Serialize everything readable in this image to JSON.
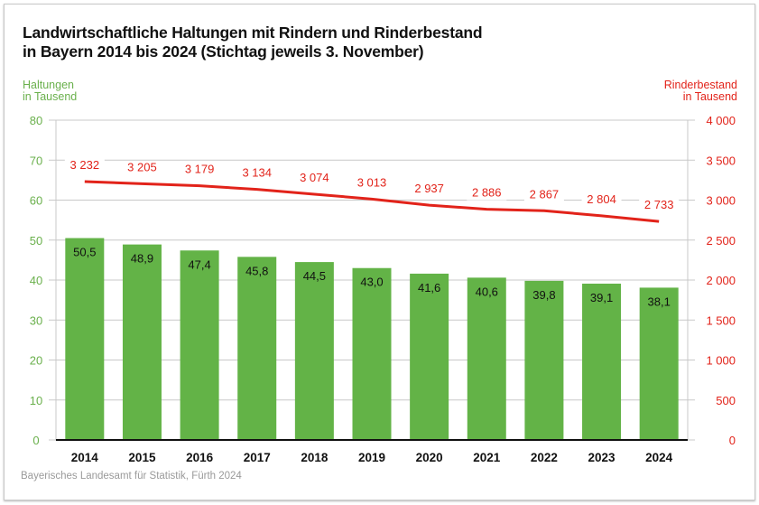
{
  "chart_data": {
    "type": "bar+line",
    "title_line1": "Landwirtschaftliche Haltungen mit Rindern und Rinderbestand",
    "title_line2": "in Bayern 2014 bis 2024 (Stichtag jeweils 3. November)",
    "ylabel_left": [
      "Haltungen",
      "in Tausend"
    ],
    "ylabel_right": [
      "Rinderbestand",
      "in Tausend"
    ],
    "categories": [
      "2014",
      "2015",
      "2016",
      "2017",
      "2018",
      "2019",
      "2020",
      "2021",
      "2022",
      "2023",
      "2024"
    ],
    "series": [
      {
        "name": "Haltungen",
        "type": "bar",
        "axis": "left",
        "values": [
          50.5,
          48.9,
          47.4,
          45.8,
          44.5,
          43.0,
          41.6,
          40.6,
          39.8,
          39.1,
          38.1
        ],
        "labels": [
          "50,5",
          "48,9",
          "47,4",
          "45,8",
          "44,5",
          "43,0",
          "41,6",
          "40,6",
          "39,8",
          "39,1",
          "38,1"
        ]
      },
      {
        "name": "Rinderbestand",
        "type": "line",
        "axis": "right",
        "values": [
          3232,
          3205,
          3179,
          3134,
          3074,
          3013,
          2937,
          2886,
          2867,
          2804,
          2733
        ],
        "labels": [
          "3 232",
          "3 205",
          "3 179",
          "3 134",
          "3 074",
          "3 013",
          "2 937",
          "2 886",
          "2 867",
          "2 804",
          "2 733"
        ]
      }
    ],
    "ylim_left": [
      0,
      80
    ],
    "ylim_right": [
      0,
      4000
    ],
    "yticks_left": [
      "0",
      "10",
      "20",
      "30",
      "40",
      "50",
      "60",
      "70",
      "80"
    ],
    "yticks_right": [
      "0",
      "500",
      "1 000",
      "1 500",
      "2 000",
      "2 500",
      "3 000",
      "3 500",
      "4 000"
    ],
    "grid": true,
    "colors": {
      "bar": "#63b347",
      "line": "#e2231a",
      "left_axis": "#6ab04c",
      "right_axis": "#e2231a",
      "grid": "#c8c8c8"
    }
  },
  "source": "Bayerisches Landesamt für Statistik, Fürth 2024"
}
